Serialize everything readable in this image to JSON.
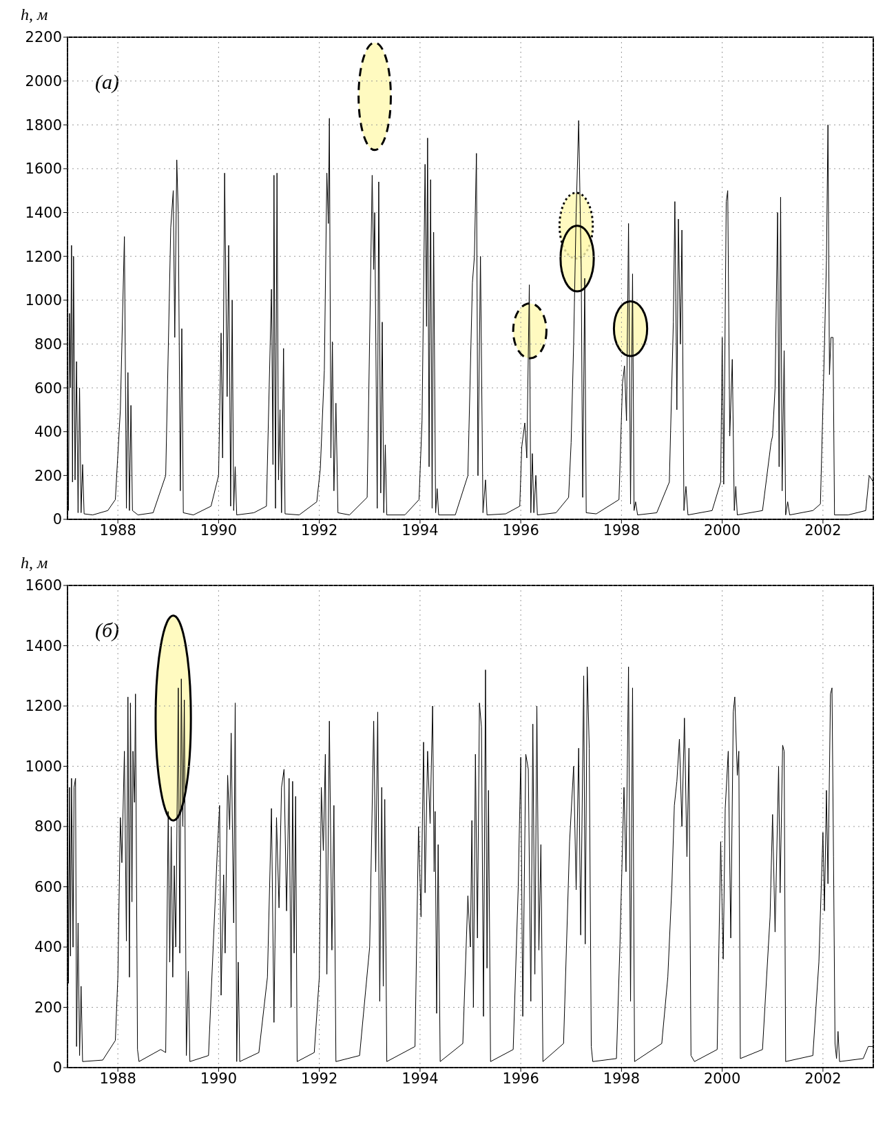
{
  "chart_data": [
    {
      "type": "line",
      "ylabel": "h, м",
      "annotations": [
        "(а)"
      ],
      "color": "#000000",
      "grid": true,
      "xlim": [
        1987,
        2003
      ],
      "ylim": [
        0,
        2200
      ],
      "xticks": [
        1988,
        1990,
        1992,
        1994,
        1996,
        1998,
        2000,
        2002
      ],
      "yticks": [
        0,
        200,
        400,
        600,
        800,
        1000,
        1200,
        1400,
        1600,
        1800,
        2000,
        2200
      ],
      "x": [
        1987.0,
        1987.02,
        1987.04,
        1987.06,
        1987.08,
        1987.1,
        1987.12,
        1987.15,
        1987.18,
        1987.21,
        1987.24,
        1987.27,
        1987.3,
        1987.33,
        1987.5,
        1987.8,
        1987.95,
        1988.05,
        1988.13,
        1988.17,
        1988.2,
        1988.23,
        1988.26,
        1988.29,
        1988.4,
        1988.7,
        1988.95,
        1989.05,
        1989.1,
        1989.13,
        1989.17,
        1989.2,
        1989.24,
        1989.27,
        1989.3,
        1989.5,
        1989.85,
        1990.0,
        1990.05,
        1990.08,
        1990.12,
        1990.17,
        1990.2,
        1990.24,
        1990.27,
        1990.3,
        1990.33,
        1990.36,
        1990.7,
        1990.95,
        1991.05,
        1991.08,
        1991.1,
        1991.13,
        1991.16,
        1991.19,
        1991.22,
        1991.25,
        1991.29,
        1991.32,
        1991.6,
        1991.95,
        1992.02,
        1992.1,
        1992.15,
        1992.18,
        1992.2,
        1992.23,
        1992.26,
        1992.29,
        1992.33,
        1992.37,
        1992.6,
        1992.95,
        1993.05,
        1993.08,
        1993.1,
        1993.12,
        1993.15,
        1993.18,
        1993.22,
        1993.25,
        1993.28,
        1993.31,
        1993.34,
        1993.7,
        1993.98,
        1994.04,
        1994.1,
        1994.13,
        1994.15,
        1994.18,
        1994.21,
        1994.24,
        1994.27,
        1994.31,
        1994.34,
        1994.37,
        1994.7,
        1994.95,
        1995.04,
        1995.08,
        1995.12,
        1995.15,
        1995.2,
        1995.25,
        1995.3,
        1995.33,
        1995.7,
        1995.98,
        1996.02,
        1996.08,
        1996.12,
        1996.17,
        1996.2,
        1996.23,
        1996.26,
        1996.3,
        1996.33,
        1996.7,
        1996.95,
        1997.0,
        1997.05,
        1997.1,
        1997.15,
        1997.2,
        1997.23,
        1997.27,
        1997.3,
        1997.5,
        1997.95,
        1998.02,
        1998.06,
        1998.1,
        1998.14,
        1998.18,
        1998.22,
        1998.25,
        1998.28,
        1998.32,
        1998.7,
        1998.95,
        1999.03,
        1999.06,
        1999.1,
        1999.13,
        1999.17,
        1999.2,
        1999.24,
        1999.28,
        1999.32,
        1999.8,
        1999.97,
        2000.0,
        2000.03,
        2000.08,
        2000.11,
        2000.15,
        2000.2,
        2000.24,
        2000.27,
        2000.3,
        2000.8,
        2000.97,
        2001.0,
        2001.05,
        2001.1,
        2001.13,
        2001.16,
        2001.19,
        2001.23,
        2001.26,
        2001.3,
        2001.34,
        2001.8,
        2001.95,
        2002.03,
        2002.07,
        2002.1,
        2002.13,
        2002.16,
        2002.2,
        2002.23,
        2002.5,
        2002.85,
        2002.92,
        2003.0
      ],
      "values": [
        520,
        40,
        940,
        600,
        1250,
        170,
        1200,
        180,
        720,
        30,
        600,
        30,
        250,
        25,
        20,
        40,
        90,
        500,
        1290,
        50,
        670,
        40,
        520,
        40,
        20,
        30,
        200,
        1330,
        1500,
        830,
        1640,
        1390,
        130,
        870,
        30,
        20,
        60,
        200,
        850,
        280,
        1580,
        560,
        1250,
        60,
        1000,
        40,
        240,
        20,
        30,
        60,
        1050,
        250,
        1570,
        50,
        1580,
        180,
        500,
        30,
        780,
        25,
        20,
        80,
        230,
        680,
        1580,
        1350,
        1830,
        280,
        810,
        130,
        530,
        30,
        20,
        100,
        1570,
        1140,
        1400,
        880,
        50,
        1540,
        120,
        900,
        30,
        340,
        20,
        20,
        90,
        450,
        1620,
        880,
        1740,
        240,
        1550,
        50,
        1310,
        30,
        140,
        20,
        20,
        200,
        1080,
        1200,
        1670,
        200,
        1200,
        30,
        180,
        20,
        25,
        60,
        330,
        440,
        280,
        1070,
        30,
        300,
        30,
        200,
        20,
        30,
        100,
        350,
        800,
        1400,
        1820,
        1150,
        100,
        1100,
        30,
        25,
        90,
        620,
        700,
        450,
        1350,
        70,
        1120,
        40,
        80,
        20,
        30,
        170,
        900,
        1450,
        500,
        1370,
        800,
        1320,
        40,
        150,
        20,
        40,
        170,
        830,
        160,
        1450,
        1500,
        380,
        730,
        40,
        150,
        20,
        40,
        350,
        380,
        600,
        1400,
        240,
        1470,
        130,
        770,
        20,
        80,
        20,
        40,
        70,
        790,
        1180,
        1800,
        660,
        830,
        830,
        20,
        20,
        40,
        200,
        170
      ]
    },
    {
      "type": "line",
      "ylabel": "h, м",
      "annotations": [
        "(б)"
      ],
      "color": "#000000",
      "grid": true,
      "xlim": [
        1987,
        2003
      ],
      "ylim": [
        0,
        1600
      ],
      "xticks": [
        1988,
        1990,
        1992,
        1994,
        1996,
        1998,
        2000,
        2002
      ],
      "yticks": [
        0,
        200,
        400,
        600,
        800,
        1000,
        1200,
        1400,
        1600
      ],
      "x": [
        1987.0,
        1987.02,
        1987.04,
        1987.06,
        1987.08,
        1987.11,
        1987.13,
        1987.16,
        1987.18,
        1987.21,
        1987.24,
        1987.27,
        1987.3,
        1987.7,
        1987.95,
        1988.0,
        1988.05,
        1988.08,
        1988.13,
        1988.17,
        1988.2,
        1988.23,
        1988.25,
        1988.28,
        1988.3,
        1988.33,
        1988.35,
        1988.39,
        1988.42,
        1988.85,
        1988.95,
        1989.0,
        1989.03,
        1989.06,
        1989.09,
        1989.12,
        1989.15,
        1989.2,
        1989.23,
        1989.26,
        1989.29,
        1989.32,
        1989.36,
        1989.4,
        1989.43,
        1989.8,
        1989.97,
        1990.02,
        1990.05,
        1990.1,
        1990.13,
        1990.18,
        1990.22,
        1990.25,
        1990.3,
        1990.33,
        1990.36,
        1990.39,
        1990.42,
        1990.8,
        1990.97,
        1991.05,
        1991.1,
        1991.15,
        1991.2,
        1991.25,
        1991.3,
        1991.35,
        1991.4,
        1991.44,
        1991.47,
        1991.5,
        1991.53,
        1991.56,
        1991.9,
        1992.0,
        1992.04,
        1992.08,
        1992.12,
        1992.15,
        1992.2,
        1992.25,
        1992.29,
        1992.33,
        1992.8,
        1993.0,
        1993.08,
        1993.12,
        1993.16,
        1993.2,
        1993.24,
        1993.27,
        1993.3,
        1993.34,
        1993.9,
        1993.97,
        1994.02,
        1994.07,
        1994.1,
        1994.15,
        1994.2,
        1994.25,
        1994.28,
        1994.3,
        1994.33,
        1994.36,
        1994.4,
        1994.85,
        1994.95,
        1995.0,
        1995.03,
        1995.06,
        1995.1,
        1995.14,
        1995.18,
        1995.22,
        1995.26,
        1995.3,
        1995.33,
        1995.36,
        1995.4,
        1995.85,
        1995.95,
        1996.0,
        1996.04,
        1996.1,
        1996.15,
        1996.2,
        1996.24,
        1996.28,
        1996.32,
        1996.36,
        1996.4,
        1996.44,
        1996.85,
        1996.97,
        1997.05,
        1997.1,
        1997.15,
        1997.19,
        1997.25,
        1997.28,
        1997.32,
        1997.36,
        1997.4,
        1997.43,
        1997.9,
        1997.97,
        1998.05,
        1998.09,
        1998.14,
        1998.18,
        1998.22,
        1998.26,
        1998.8,
        1998.92,
        1999.0,
        1999.05,
        1999.1,
        1999.15,
        1999.2,
        1999.25,
        1999.3,
        1999.34,
        1999.38,
        1999.45,
        1999.9,
        1999.97,
        2000.02,
        2000.06,
        2000.12,
        2000.17,
        2000.22,
        2000.25,
        2000.3,
        2000.33,
        2000.36,
        2000.8,
        2000.95,
        2001.0,
        2001.05,
        2001.12,
        2001.15,
        2001.2,
        2001.23,
        2001.26,
        2001.8,
        2001.92,
        2002.0,
        2002.03,
        2002.07,
        2002.1,
        2002.15,
        2002.18,
        2002.21,
        2002.24,
        2002.27,
        2002.3,
        2002.33,
        2002.8,
        2002.9,
        2003.0
      ],
      "values": [
        900,
        280,
        930,
        370,
        960,
        400,
        930,
        960,
        70,
        480,
        40,
        270,
        20,
        25,
        90,
        300,
        830,
        680,
        1050,
        420,
        1230,
        300,
        1210,
        550,
        1050,
        880,
        1240,
        60,
        20,
        60,
        50,
        850,
        350,
        800,
        300,
        670,
        400,
        1260,
        380,
        1290,
        800,
        1220,
        40,
        320,
        20,
        40,
        700,
        870,
        240,
        640,
        380,
        970,
        790,
        1110,
        480,
        1210,
        20,
        350,
        20,
        50,
        300,
        860,
        150,
        830,
        530,
        930,
        990,
        520,
        960,
        200,
        950,
        380,
        900,
        20,
        50,
        300,
        930,
        720,
        1040,
        310,
        1150,
        390,
        870,
        20,
        40,
        400,
        1150,
        650,
        1180,
        220,
        930,
        270,
        890,
        20,
        70,
        800,
        500,
        1080,
        580,
        1050,
        810,
        1200,
        650,
        850,
        180,
        740,
        20,
        80,
        570,
        400,
        820,
        200,
        1040,
        430,
        1210,
        1130,
        170,
        1320,
        330,
        920,
        20,
        60,
        600,
        1030,
        170,
        1040,
        990,
        220,
        1140,
        310,
        1200,
        390,
        740,
        20,
        80,
        750,
        1000,
        590,
        1060,
        440,
        1300,
        410,
        1330,
        1060,
        70,
        20,
        30,
        410,
        930,
        650,
        1330,
        220,
        1260,
        20,
        80,
        300,
        600,
        870,
        950,
        1090,
        800,
        1160,
        700,
        1060,
        40,
        20,
        60,
        750,
        360,
        860,
        1050,
        430,
        1180,
        1230,
        970,
        1050,
        30,
        60,
        500,
        840,
        450,
        1000,
        580,
        1070,
        1050,
        20,
        40,
        350,
        780,
        520,
        920,
        610,
        1240,
        1260,
        700,
        80,
        30,
        120,
        20,
        30,
        70,
        70
      ]
    }
  ]
}
